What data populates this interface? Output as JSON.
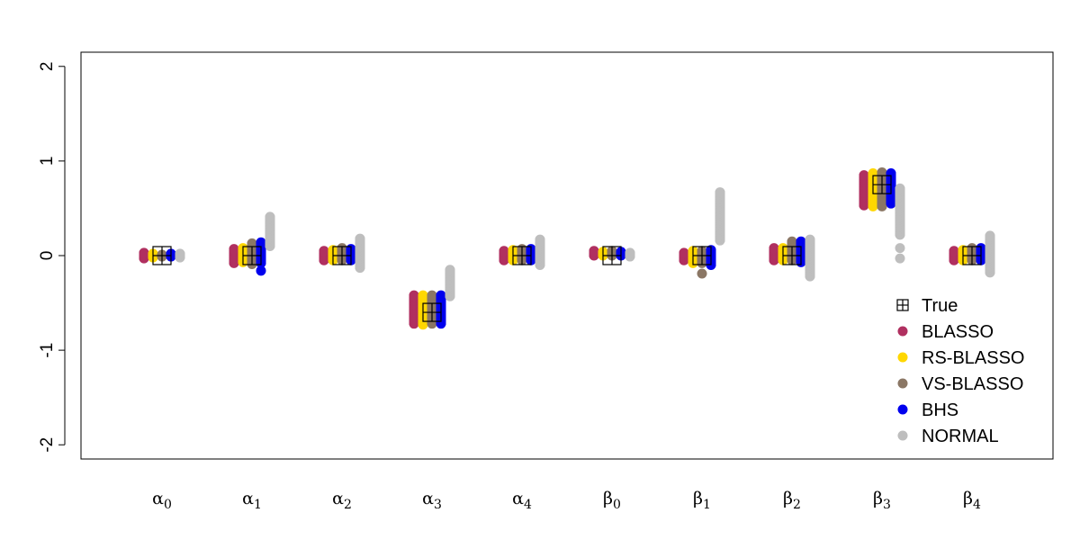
{
  "chart_data": {
    "type": "scatter",
    "title": "",
    "xlabel": "",
    "ylabel": "",
    "ylim": [
      -2.15,
      2.15
    ],
    "yticks": [
      -2,
      -1,
      0,
      1,
      2
    ],
    "ytick_labels": [
      "-2",
      "-1",
      "0",
      "1",
      "2"
    ],
    "categories": [
      {
        "base": "α",
        "sub": "0"
      },
      {
        "base": "α",
        "sub": "1"
      },
      {
        "base": "α",
        "sub": "2"
      },
      {
        "base": "α",
        "sub": "3"
      },
      {
        "base": "α",
        "sub": "4"
      },
      {
        "base": "β",
        "sub": "0"
      },
      {
        "base": "β",
        "sub": "1"
      },
      {
        "base": "β",
        "sub": "2"
      },
      {
        "base": "β",
        "sub": "3"
      },
      {
        "base": "β",
        "sub": "4"
      }
    ],
    "true_values": [
      0,
      0,
      0,
      -0.6,
      0,
      0,
      0,
      0,
      0.75,
      0
    ],
    "series": [
      {
        "name": "BLASSO",
        "color": "#B03060",
        "offset": -0.2,
        "ranges": [
          [
            -0.03,
            0.03
          ],
          [
            -0.08,
            0.07
          ],
          [
            -0.05,
            0.05
          ],
          [
            -0.72,
            -0.42
          ],
          [
            -0.05,
            0.05
          ],
          [
            0.0,
            0.05
          ],
          [
            -0.05,
            0.03
          ],
          [
            -0.05,
            0.08
          ],
          [
            0.53,
            0.85
          ],
          [
            -0.05,
            0.05
          ]
        ],
        "outliers": [
          [],
          [],
          [],
          [],
          [],
          [],
          [],
          [],
          [],
          []
        ]
      },
      {
        "name": "RS-BLASSO",
        "color": "#FFD700",
        "offset": -0.1,
        "ranges": [
          [
            -0.02,
            0.02
          ],
          [
            -0.07,
            0.08
          ],
          [
            -0.05,
            0.06
          ],
          [
            -0.73,
            -0.42
          ],
          [
            -0.05,
            0.06
          ],
          [
            0.0,
            0.04
          ],
          [
            -0.08,
            0.05
          ],
          [
            -0.05,
            0.08
          ],
          [
            0.52,
            0.87
          ],
          [
            -0.05,
            0.06
          ]
        ],
        "outliers": [
          [],
          [],
          [],
          [],
          [],
          [],
          [],
          [],
          [],
          []
        ]
      },
      {
        "name": "VS-BLASSO",
        "color": "#8B7765",
        "offset": 0.0,
        "ranges": [
          [
            -0.01,
            0.01
          ],
          [
            -0.09,
            0.13
          ],
          [
            -0.05,
            0.08
          ],
          [
            -0.72,
            -0.42
          ],
          [
            -0.05,
            0.07
          ],
          [
            0.0,
            0.05
          ],
          [
            -0.08,
            0.05
          ],
          [
            -0.05,
            0.15
          ],
          [
            0.52,
            0.88
          ],
          [
            -0.05,
            0.08
          ]
        ],
        "outliers": [
          [],
          [],
          [],
          [],
          [],
          [],
          [
            -0.19
          ],
          [],
          [],
          []
        ]
      },
      {
        "name": "BHS",
        "color": "#0000EE",
        "offset": 0.1,
        "ranges": [
          [
            -0.01,
            0.02
          ],
          [
            -0.08,
            0.14
          ],
          [
            -0.05,
            0.07
          ],
          [
            -0.72,
            -0.42
          ],
          [
            -0.05,
            0.07
          ],
          [
            0.0,
            0.04
          ],
          [
            -0.1,
            0.06
          ],
          [
            -0.07,
            0.15
          ],
          [
            0.55,
            0.87
          ],
          [
            -0.05,
            0.08
          ]
        ],
        "outliers": [
          [],
          [
            -0.16
          ],
          [],
          [],
          [],
          [],
          [],
          [],
          [],
          []
        ]
      },
      {
        "name": "NORMAL",
        "color": "#BEBEBE",
        "offset": 0.2,
        "ranges": [
          [
            -0.02,
            0.02
          ],
          [
            0.1,
            0.41
          ],
          [
            -0.13,
            0.18
          ],
          [
            -0.43,
            -0.15
          ],
          [
            -0.1,
            0.17
          ],
          [
            -0.01,
            0.03
          ],
          [
            0.16,
            0.67
          ],
          [
            -0.22,
            0.17
          ],
          [
            0.22,
            0.71
          ],
          [
            -0.18,
            0.21
          ]
        ],
        "outliers": [
          [],
          [],
          [],
          [],
          [],
          [],
          [],
          [],
          [
            0.08,
            -0.03
          ],
          []
        ]
      }
    ],
    "legend": {
      "position": "bottom-right",
      "entries": [
        "True",
        "BLASSO",
        "RS-BLASSO",
        "VS-BLASSO",
        "BHS",
        "NORMAL"
      ],
      "colors": [
        "#000000",
        "#B03060",
        "#FFD700",
        "#8B7765",
        "#0000EE",
        "#BEBEBE"
      ]
    }
  }
}
